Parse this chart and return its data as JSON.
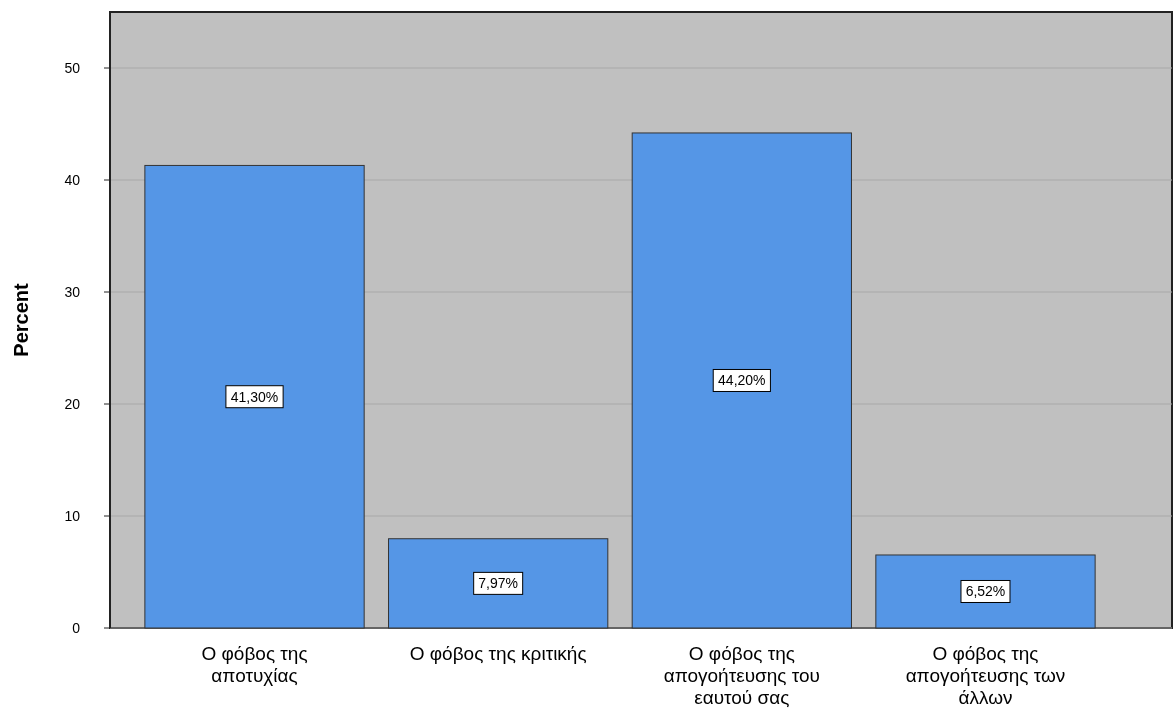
{
  "chart_data": {
    "type": "bar",
    "ylabel": "Percent",
    "categories": [
      "Ο φόβος της αποτυχίας",
      "Ο φόβος της κριτικής",
      "Ο φόβος της απογοήτευσης του εαυτού σας",
      "Ο φόβος της απογοήτευσης των άλλων"
    ],
    "values": [
      41.3,
      7.97,
      44.2,
      6.52
    ],
    "value_labels": [
      "41,30%",
      "7,97%",
      "44,20%",
      "6,52%"
    ],
    "color": "#5596e6",
    "ylim": [
      0,
      55
    ],
    "yticks": [
      0,
      10,
      20,
      30,
      40,
      50
    ],
    "grid": "y"
  }
}
